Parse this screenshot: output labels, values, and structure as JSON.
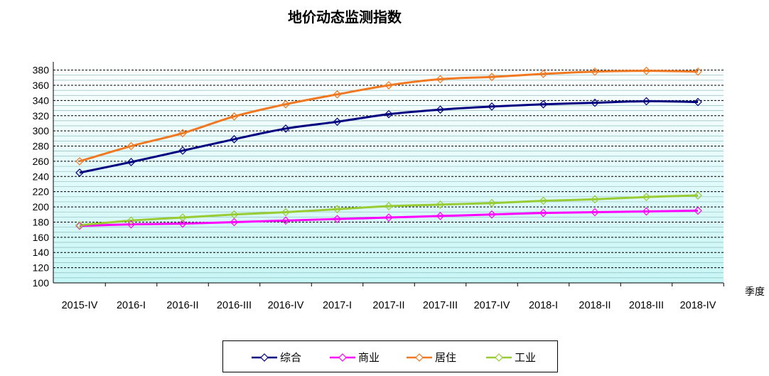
{
  "chart_data": {
    "type": "line",
    "title": "地价动态监测指数",
    "xlabel": "季度",
    "ylabel": "",
    "ylim": [
      100,
      380
    ],
    "yticks": [
      100,
      120,
      140,
      160,
      180,
      200,
      220,
      240,
      260,
      280,
      300,
      320,
      340,
      360,
      380
    ],
    "categories": [
      "2015-IV",
      "2016-I",
      "2016-II",
      "2016-III",
      "2016-IV",
      "2017-I",
      "2017-II",
      "2017-III",
      "2017-IV",
      "2018-I",
      "2018-II",
      "2018-III",
      "2018-IV"
    ],
    "series": [
      {
        "name": "综合",
        "color": "#000080",
        "values": [
          245,
          259,
          274,
          289,
          303,
          312,
          322,
          328,
          332,
          335,
          337,
          339,
          338
        ]
      },
      {
        "name": "商业",
        "color": "#ff00ff",
        "values": [
          175,
          177,
          178,
          180,
          182,
          184,
          186,
          188,
          190,
          192,
          193,
          194,
          195
        ]
      },
      {
        "name": "居住",
        "color": "#f07820",
        "values": [
          260,
          280,
          297,
          319,
          335,
          348,
          360,
          368,
          371,
          375,
          378,
          379,
          378
        ]
      },
      {
        "name": "工业",
        "color": "#99cc33",
        "values": [
          176,
          182,
          186,
          190,
          193,
          197,
          201,
          203,
          205,
          208,
          210,
          213,
          215
        ]
      }
    ],
    "grid": true,
    "legend_position": "bottom"
  }
}
